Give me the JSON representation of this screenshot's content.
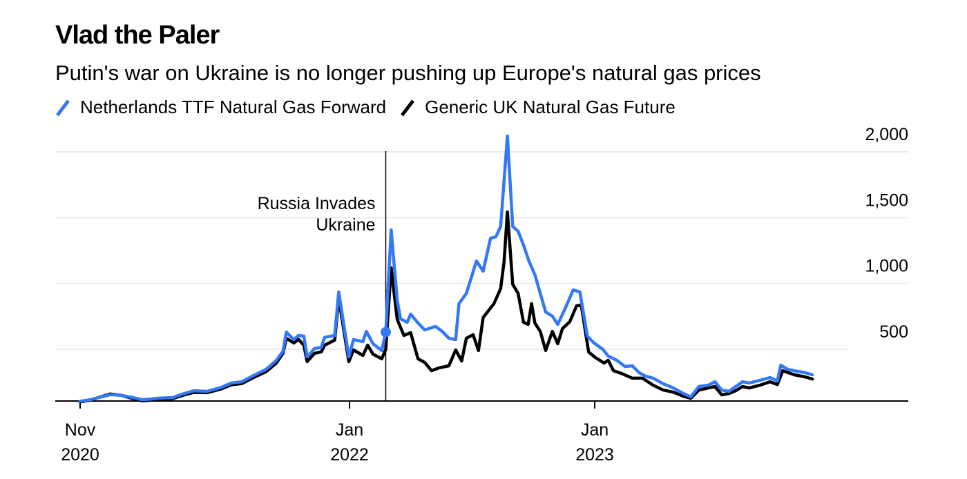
{
  "chart_data": {
    "type": "line",
    "title": "Vlad the Paler",
    "subtitle": "Putin's war on Ukraine is no longer pushing up Europe's natural gas prices",
    "xlabel": "",
    "ylabel": "",
    "ylim": [
      100,
      2000
    ],
    "grid": true,
    "legend_placement": "top-left",
    "y_ticks": [
      {
        "value": 500,
        "label": "500"
      },
      {
        "value": 1000,
        "label": "1,000"
      },
      {
        "value": 1500,
        "label": "1,500"
      },
      {
        "value": 2000,
        "label": "2,000"
      }
    ],
    "x_ticks": [
      {
        "date": "2020-11-26",
        "line1": "Nov",
        "line2": "2020"
      },
      {
        "date": "2022-01-01",
        "line1": "Jan",
        "line2": "2022"
      },
      {
        "date": "2023-01-01",
        "line1": "Jan",
        "line2": "2023"
      }
    ],
    "annotation": {
      "date": "2022-02-24",
      "line1": "Russia Invades",
      "line2": "Ukraine",
      "marker_value": 630
    },
    "series": [
      {
        "name": "Netherlands TTF Natural Gas Forward",
        "color": "#3478F6",
        "points": [
          [
            "2020-11-26",
            105
          ],
          [
            "2020-12-10",
            115
          ],
          [
            "2021-01-10",
            155
          ],
          [
            "2021-01-26",
            150
          ],
          [
            "2021-02-10",
            135
          ],
          [
            "2021-02-26",
            117
          ],
          [
            "2021-03-08",
            120
          ],
          [
            "2021-03-23",
            128
          ],
          [
            "2021-04-13",
            133
          ],
          [
            "2021-04-28",
            160
          ],
          [
            "2021-05-14",
            185
          ],
          [
            "2021-06-03",
            180
          ],
          [
            "2021-06-24",
            210
          ],
          [
            "2021-07-09",
            243
          ],
          [
            "2021-07-25",
            253
          ],
          [
            "2021-08-09",
            295
          ],
          [
            "2021-08-30",
            348
          ],
          [
            "2021-09-14",
            415
          ],
          [
            "2021-09-24",
            485
          ],
          [
            "2021-09-29",
            630
          ],
          [
            "2021-10-10",
            573
          ],
          [
            "2021-10-17",
            605
          ],
          [
            "2021-10-25",
            600
          ],
          [
            "2021-10-30",
            442
          ],
          [
            "2021-11-10",
            505
          ],
          [
            "2021-11-20",
            515
          ],
          [
            "2021-11-25",
            590
          ],
          [
            "2021-12-10",
            605
          ],
          [
            "2021-12-16",
            935
          ],
          [
            "2021-12-31",
            442
          ],
          [
            "2022-01-07",
            573
          ],
          [
            "2022-01-21",
            558
          ],
          [
            "2022-01-26",
            636
          ],
          [
            "2022-02-05",
            542
          ],
          [
            "2022-02-18",
            490
          ],
          [
            "2022-02-24",
            630
          ],
          [
            "2022-03-04",
            1407
          ],
          [
            "2022-03-13",
            872
          ],
          [
            "2022-03-18",
            731
          ],
          [
            "2022-03-28",
            705
          ],
          [
            "2022-04-02",
            767
          ],
          [
            "2022-04-13",
            699
          ],
          [
            "2022-04-23",
            647
          ],
          [
            "2022-05-09",
            673
          ],
          [
            "2022-05-19",
            636
          ],
          [
            "2022-05-29",
            584
          ],
          [
            "2022-06-08",
            573
          ],
          [
            "2022-06-13",
            846
          ],
          [
            "2022-06-24",
            925
          ],
          [
            "2022-07-09",
            1171
          ],
          [
            "2022-07-19",
            1093
          ],
          [
            "2022-07-30",
            1344
          ],
          [
            "2022-08-07",
            1355
          ],
          [
            "2022-08-14",
            1433
          ],
          [
            "2022-08-24",
            2120
          ],
          [
            "2022-09-01",
            1433
          ],
          [
            "2022-09-09",
            1397
          ],
          [
            "2022-09-17",
            1292
          ],
          [
            "2022-09-25",
            1171
          ],
          [
            "2022-10-04",
            1066
          ],
          [
            "2022-10-20",
            783
          ],
          [
            "2022-10-30",
            752
          ],
          [
            "2022-11-07",
            689
          ],
          [
            "2022-11-18",
            809
          ],
          [
            "2022-11-30",
            951
          ],
          [
            "2022-12-10",
            935
          ],
          [
            "2022-12-21",
            600
          ],
          [
            "2022-12-31",
            547
          ],
          [
            "2023-01-13",
            500
          ],
          [
            "2023-01-21",
            448
          ],
          [
            "2023-02-03",
            416
          ],
          [
            "2023-02-15",
            369
          ],
          [
            "2023-02-26",
            374
          ],
          [
            "2023-03-08",
            322
          ],
          [
            "2023-03-18",
            295
          ],
          [
            "2023-03-29",
            280
          ],
          [
            "2023-04-13",
            238
          ],
          [
            "2023-04-28",
            206
          ],
          [
            "2023-05-13",
            164
          ],
          [
            "2023-05-24",
            138
          ],
          [
            "2023-06-05",
            217
          ],
          [
            "2023-06-19",
            227
          ],
          [
            "2023-06-29",
            253
          ],
          [
            "2023-07-09",
            190
          ],
          [
            "2023-07-20",
            180
          ],
          [
            "2023-07-30",
            217
          ],
          [
            "2023-08-09",
            253
          ],
          [
            "2023-08-19",
            243
          ],
          [
            "2023-09-04",
            264
          ],
          [
            "2023-09-19",
            285
          ],
          [
            "2023-09-30",
            259
          ],
          [
            "2023-10-05",
            379
          ],
          [
            "2023-10-15",
            348
          ],
          [
            "2023-10-25",
            337
          ],
          [
            "2023-11-10",
            322
          ],
          [
            "2023-11-21",
            306
          ]
        ]
      },
      {
        "name": "Generic UK Natural Gas Future",
        "color": "#000000",
        "points": [
          [
            "2020-11-26",
            100
          ],
          [
            "2020-12-10",
            112
          ],
          [
            "2021-01-10",
            160
          ],
          [
            "2021-01-26",
            150
          ],
          [
            "2021-02-10",
            128
          ],
          [
            "2021-02-26",
            108
          ],
          [
            "2021-03-08",
            112
          ],
          [
            "2021-03-23",
            122
          ],
          [
            "2021-04-13",
            125
          ],
          [
            "2021-04-28",
            150
          ],
          [
            "2021-05-14",
            172
          ],
          [
            "2021-06-03",
            170
          ],
          [
            "2021-06-24",
            198
          ],
          [
            "2021-07-09",
            230
          ],
          [
            "2021-07-25",
            240
          ],
          [
            "2021-08-09",
            280
          ],
          [
            "2021-08-30",
            330
          ],
          [
            "2021-09-14",
            395
          ],
          [
            "2021-09-24",
            470
          ],
          [
            "2021-09-29",
            584
          ],
          [
            "2021-10-10",
            547
          ],
          [
            "2021-10-17",
            575
          ],
          [
            "2021-10-25",
            531
          ],
          [
            "2021-10-30",
            406
          ],
          [
            "2021-11-10",
            469
          ],
          [
            "2021-11-20",
            480
          ],
          [
            "2021-11-25",
            531
          ],
          [
            "2021-12-10",
            570
          ],
          [
            "2021-12-16",
            888
          ],
          [
            "2021-12-31",
            406
          ],
          [
            "2022-01-07",
            495
          ],
          [
            "2022-01-21",
            453
          ],
          [
            "2022-01-28",
            531
          ],
          [
            "2022-02-05",
            463
          ],
          [
            "2022-02-18",
            427
          ],
          [
            "2022-02-24",
            500
          ],
          [
            "2022-03-04",
            1119
          ],
          [
            "2022-03-13",
            726
          ],
          [
            "2022-03-23",
            605
          ],
          [
            "2022-04-02",
            626
          ],
          [
            "2022-04-13",
            427
          ],
          [
            "2022-04-23",
            400
          ],
          [
            "2022-05-03",
            337
          ],
          [
            "2022-05-14",
            358
          ],
          [
            "2022-05-29",
            374
          ],
          [
            "2022-06-08",
            495
          ],
          [
            "2022-06-17",
            411
          ],
          [
            "2022-06-24",
            584
          ],
          [
            "2022-07-04",
            610
          ],
          [
            "2022-07-12",
            490
          ],
          [
            "2022-07-19",
            741
          ],
          [
            "2022-08-04",
            846
          ],
          [
            "2022-08-14",
            961
          ],
          [
            "2022-08-19",
            1161
          ],
          [
            "2022-08-24",
            1543
          ],
          [
            "2022-09-01",
            993
          ],
          [
            "2022-09-09",
            925
          ],
          [
            "2022-09-17",
            705
          ],
          [
            "2022-09-24",
            689
          ],
          [
            "2022-09-29",
            846
          ],
          [
            "2022-10-04",
            699
          ],
          [
            "2022-10-12",
            636
          ],
          [
            "2022-10-20",
            490
          ],
          [
            "2022-10-30",
            636
          ],
          [
            "2022-11-07",
            542
          ],
          [
            "2022-11-14",
            657
          ],
          [
            "2022-11-25",
            710
          ],
          [
            "2022-12-05",
            830
          ],
          [
            "2022-12-12",
            836
          ],
          [
            "2022-12-23",
            479
          ],
          [
            "2023-01-02",
            437
          ],
          [
            "2023-01-15",
            395
          ],
          [
            "2023-01-21",
            416
          ],
          [
            "2023-01-29",
            337
          ],
          [
            "2023-02-10",
            316
          ],
          [
            "2023-02-26",
            280
          ],
          [
            "2023-03-13",
            280
          ],
          [
            "2023-03-29",
            227
          ],
          [
            "2023-04-13",
            190
          ],
          [
            "2023-04-28",
            174
          ],
          [
            "2023-05-13",
            143
          ],
          [
            "2023-05-24",
            127
          ],
          [
            "2023-06-05",
            190
          ],
          [
            "2023-06-19",
            206
          ],
          [
            "2023-06-29",
            217
          ],
          [
            "2023-07-09",
            154
          ],
          [
            "2023-07-20",
            164
          ],
          [
            "2023-07-30",
            185
          ],
          [
            "2023-08-09",
            217
          ],
          [
            "2023-08-19",
            206
          ],
          [
            "2023-09-04",
            227
          ],
          [
            "2023-09-19",
            253
          ],
          [
            "2023-09-30",
            232
          ],
          [
            "2023-10-08",
            337
          ],
          [
            "2023-10-25",
            306
          ],
          [
            "2023-11-10",
            290
          ],
          [
            "2023-11-21",
            274
          ]
        ]
      }
    ]
  }
}
